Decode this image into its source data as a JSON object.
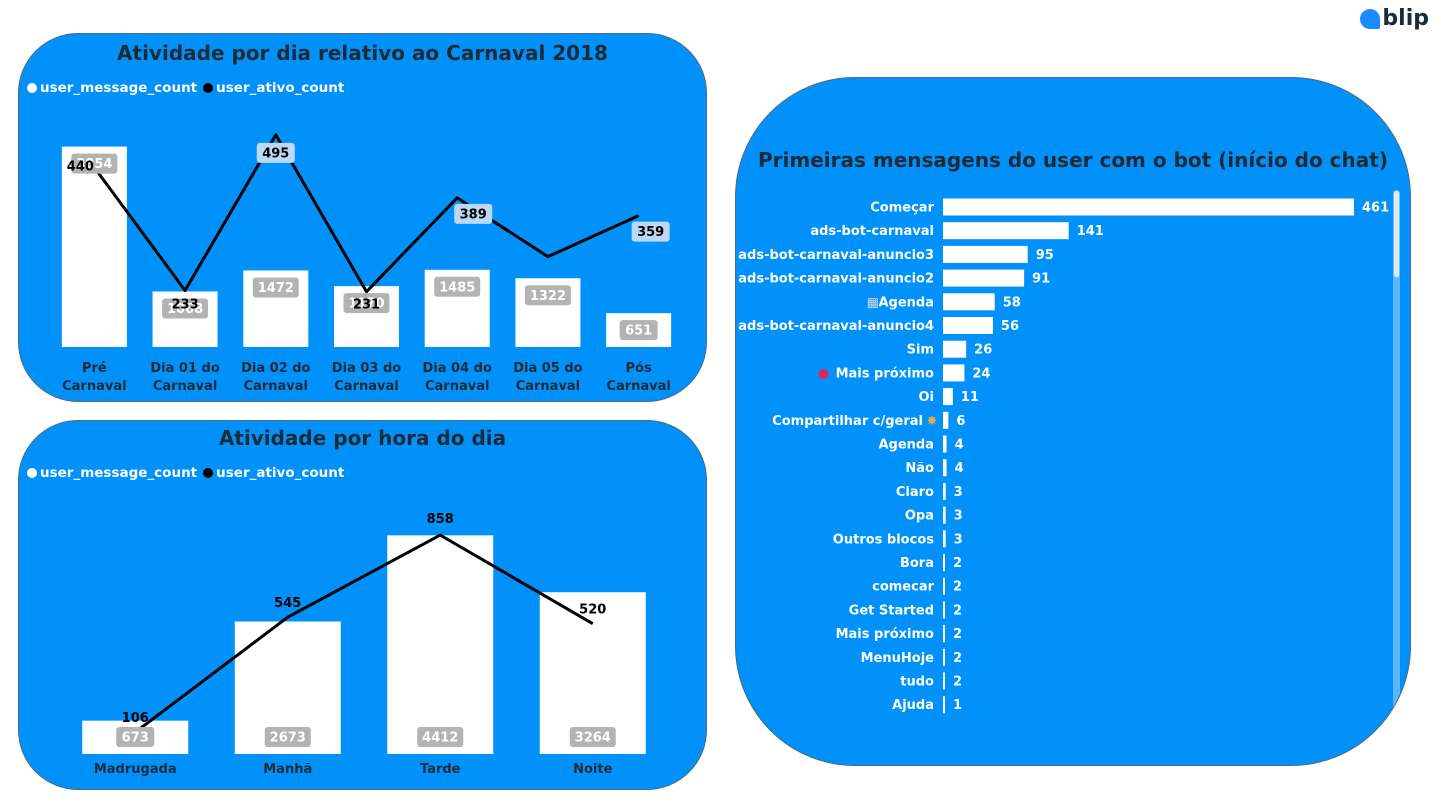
{
  "brand": {
    "logo_text": "blip",
    "logo_icon": "speech-bubble-icon"
  },
  "colors": {
    "panel": "#0091fa",
    "bar": "#ffffff",
    "line": "#000000",
    "label_bg": "#b3b3b3",
    "label_bg_light": "#bcd8f2"
  },
  "chart_data": [
    {
      "type": "bar",
      "title": "Atividade por dia relativo ao Carnaval 2018",
      "legend": [
        "user_message_count",
        "user_ativo_count"
      ],
      "legend_position": "top-left",
      "categories": [
        "Pré\nCarnaval",
        "Dia 01 do\nCarnaval",
        "Dia 02 do\nCarnaval",
        "Dia 03 do\nCarnaval",
        "Dia 04 do\nCarnaval",
        "Dia 05 do\nCarnaval",
        "Pós\nCarnaval"
      ],
      "series": [
        {
          "name": "user_message_count",
          "type": "bar",
          "values": [
            3854,
            1068,
            1472,
            1170,
            1485,
            1322,
            651
          ]
        },
        {
          "name": "user_ativo_count",
          "type": "line",
          "values": [
            440,
            233,
            495,
            231,
            389,
            290,
            359
          ],
          "labels": [
            "440",
            "233",
            "495",
            "231",
            "389",
            "",
            "359"
          ]
        }
      ],
      "ylim_bar": [
        0,
        4000
      ],
      "ylim_line": [
        180,
        520
      ],
      "grid": false
    },
    {
      "type": "bar",
      "title": "Atividade por hora do dia",
      "legend": [
        "user_message_count",
        "user_ativo_count"
      ],
      "legend_position": "top-left",
      "categories": [
        "Madrugada",
        "Manhã",
        "Tarde",
        "Noite"
      ],
      "series": [
        {
          "name": "user_message_count",
          "type": "bar",
          "values": [
            673,
            2673,
            4412,
            3264
          ]
        },
        {
          "name": "user_ativo_count",
          "type": "line",
          "values": [
            106,
            545,
            858,
            520
          ]
        }
      ],
      "ylim_bar": [
        0,
        4600
      ],
      "ylim_line": [
        80,
        950
      ],
      "grid": false
    },
    {
      "type": "bar",
      "orientation": "horizontal",
      "title": "Primeiras mensagens do user com o bot (início do chat)",
      "categories": [
        "Começar",
        "ads-bot-carnaval",
        "ads-bot-carnaval-anuncio3",
        "ads-bot-carnaval-anuncio2",
        "Agenda",
        "ads-bot-carnaval-anuncio4",
        "Sim",
        "Mais próximo",
        "Oi",
        "Compartilhar c/geral",
        "Agenda",
        "Não",
        "Claro",
        "Opa",
        "Outros blocos",
        "Bora",
        "comecar",
        "Get Started",
        "Mais próximo",
        "MenuHoje",
        "tudo",
        "Ajuda"
      ],
      "category_icons": [
        "",
        "",
        "",
        "",
        "calendar-icon",
        "",
        "",
        "pin-icon",
        "",
        "party-icon",
        "",
        "",
        "",
        "",
        "",
        "",
        "",
        "",
        "",
        "",
        "",
        ""
      ],
      "values": [
        461,
        141,
        95,
        91,
        58,
        56,
        26,
        24,
        11,
        6,
        4,
        4,
        3,
        3,
        3,
        2,
        2,
        2,
        2,
        2,
        2,
        1
      ],
      "xlim": [
        0,
        461
      ],
      "grid": false
    }
  ]
}
